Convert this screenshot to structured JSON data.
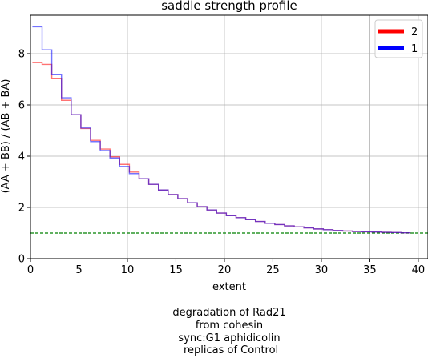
{
  "chart_data": {
    "type": "line",
    "step": true,
    "title": "saddle strength profile",
    "xlabel": "extent",
    "ylabel": "(AA + BB) / (AB + BA)",
    "xlim": [
      0,
      41
    ],
    "ylim": [
      0,
      9.5
    ],
    "xticks": [
      0,
      5,
      10,
      15,
      20,
      25,
      30,
      35,
      40
    ],
    "yticks": [
      0,
      2,
      4,
      6,
      8
    ],
    "grid": true,
    "legend_position": "top-right",
    "reference_line": {
      "y": 1,
      "color": "#008000",
      "style": "dashed"
    },
    "series": [
      {
        "name": "2",
        "color": "#ff0000",
        "values": [
          7.65,
          7.58,
          7.02,
          6.18,
          5.62,
          5.08,
          4.62,
          4.28,
          3.98,
          3.68,
          3.38,
          3.12,
          2.9,
          2.68,
          2.5,
          2.34,
          2.18,
          2.03,
          1.9,
          1.78,
          1.68,
          1.6,
          1.52,
          1.45,
          1.38,
          1.33,
          1.28,
          1.24,
          1.2,
          1.16,
          1.13,
          1.1,
          1.08,
          1.06,
          1.05,
          1.04,
          1.03,
          1.02,
          1.01
        ]
      },
      {
        "name": "1",
        "color": "#0000ff",
        "values": [
          9.05,
          8.15,
          7.18,
          6.28,
          5.62,
          5.1,
          4.57,
          4.22,
          3.93,
          3.6,
          3.32,
          3.12,
          2.9,
          2.68,
          2.5,
          2.34,
          2.18,
          2.03,
          1.9,
          1.78,
          1.68,
          1.6,
          1.52,
          1.45,
          1.38,
          1.33,
          1.28,
          1.24,
          1.2,
          1.16,
          1.13,
          1.1,
          1.08,
          1.06,
          1.05,
          1.04,
          1.03,
          1.02,
          1.01
        ]
      }
    ]
  },
  "caption": [
    "degradation of Rad21",
    "from cohesin",
    "sync:G1 aphidicolin",
    " replicas of Control"
  ]
}
